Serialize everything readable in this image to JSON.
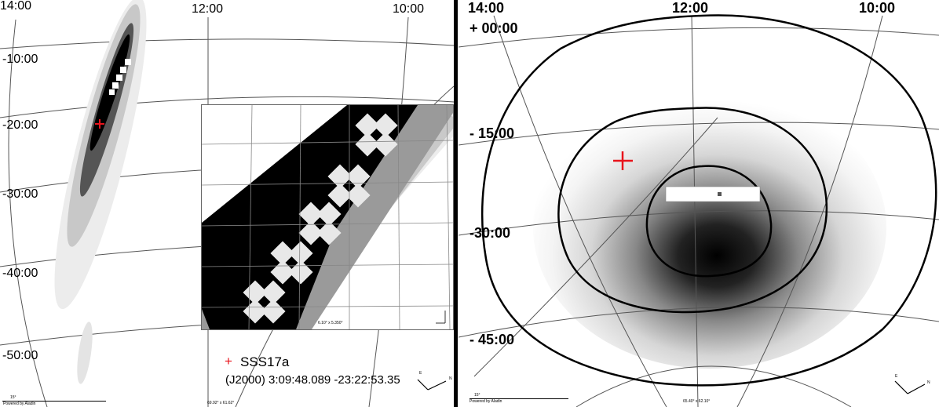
{
  "left_panel": {
    "ra_labels": [
      "14:00",
      "12:00",
      "10:00"
    ],
    "dec_labels": [
      "-10:00",
      "-20:00",
      "-30:00",
      "-40:00",
      "-50:00"
    ],
    "scale_label": "15°",
    "credit": "Powered by Aladin",
    "fov": "69.92° x 61.62°",
    "legend": {
      "marker": "+",
      "name": "SSS17a",
      "coords": "(J2000) 3:09:48.089 -23:22:53.35"
    },
    "inset": {
      "fov": "6.10° x 5.350°"
    }
  },
  "right_panel": {
    "ra_labels": [
      "14:00",
      "12:00",
      "10:00"
    ],
    "dec_labels": [
      "+ 00:00",
      "- 15:00",
      "-30:00",
      "- 45:00"
    ],
    "scale_label": "15°",
    "credit": "Powered by Aladin",
    "fov": "65.40° x 62.10°"
  },
  "compass": {
    "east": "E",
    "north": "N"
  },
  "colors": {
    "marker": "#e8141c",
    "contour": "#000000"
  }
}
